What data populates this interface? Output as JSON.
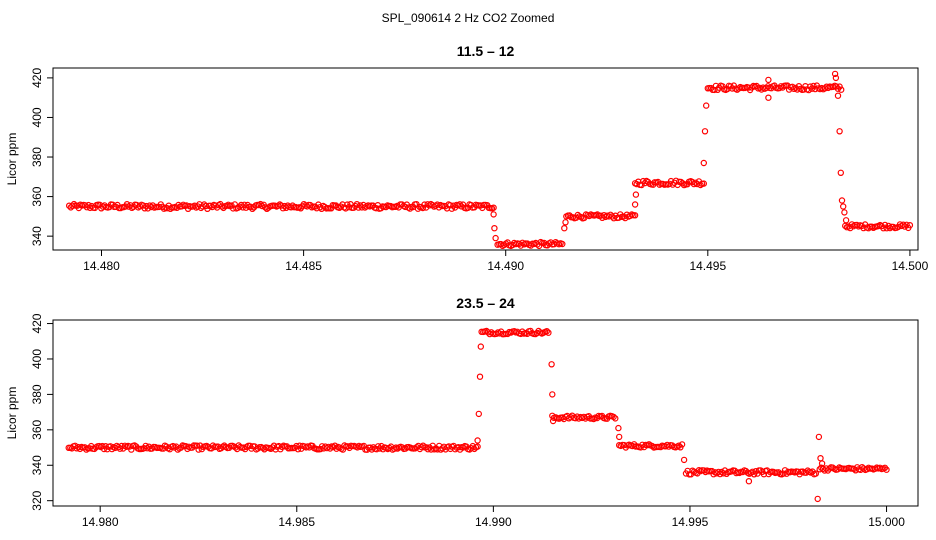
{
  "figure_title": "SPL_090614  2 Hz CO2 Zoomed",
  "chart_data": [
    {
      "type": "scatter",
      "title": "11.5 – 12",
      "xlabel": "",
      "ylabel": "Licor ppm",
      "xlim": [
        14.4788,
        14.5002
      ],
      "ylim": [
        333,
        425
      ],
      "xticks": [
        14.48,
        14.485,
        14.49,
        14.495,
        14.5
      ],
      "xtick_labels": [
        "14.480",
        "14.485",
        "14.490",
        "14.495",
        "14.500"
      ],
      "yticks": [
        340,
        360,
        380,
        400,
        420
      ],
      "ytick_labels": [
        "340",
        "360",
        "380",
        "400",
        "420"
      ],
      "marker_color": "#ff0000",
      "marker": "open-circle",
      "grid": false,
      "segments": [
        {
          "x_start": 14.4792,
          "x_end": 14.4897,
          "y": 355,
          "noise": 1.2
        },
        {
          "x_start": 14.4898,
          "x_end": 14.4914,
          "y": 336,
          "noise": 1.0
        },
        {
          "x_start": 14.4915,
          "x_end": 14.4932,
          "y": 350,
          "noise": 1.0
        },
        {
          "x_start": 14.4932,
          "x_end": 14.4949,
          "y": 367,
          "noise": 1.2
        },
        {
          "x_start": 14.495,
          "x_end": 14.4983,
          "y": 415,
          "noise": 1.2
        },
        {
          "x_start": 14.4984,
          "x_end": 14.5,
          "y": 345,
          "noise": 1.0
        }
      ],
      "transition_points": [
        {
          "x": 14.4897,
          "y": 351
        },
        {
          "x": 14.48972,
          "y": 344
        },
        {
          "x": 14.48975,
          "y": 339
        },
        {
          "x": 14.49145,
          "y": 344
        },
        {
          "x": 14.49148,
          "y": 347
        },
        {
          "x": 14.4932,
          "y": 356
        },
        {
          "x": 14.49322,
          "y": 361
        },
        {
          "x": 14.4949,
          "y": 377
        },
        {
          "x": 14.49493,
          "y": 393
        },
        {
          "x": 14.49496,
          "y": 406
        },
        {
          "x": 14.4965,
          "y": 410
        },
        {
          "x": 14.4965,
          "y": 419
        },
        {
          "x": 14.49815,
          "y": 422
        },
        {
          "x": 14.49817,
          "y": 420
        },
        {
          "x": 14.49822,
          "y": 411
        },
        {
          "x": 14.49826,
          "y": 393
        },
        {
          "x": 14.49829,
          "y": 372
        },
        {
          "x": 14.49832,
          "y": 358
        },
        {
          "x": 14.49835,
          "y": 355
        },
        {
          "x": 14.49838,
          "y": 352
        },
        {
          "x": 14.49842,
          "y": 348
        }
      ]
    },
    {
      "type": "scatter",
      "title": "23.5 – 24",
      "xlabel": "",
      "ylabel": "Licor ppm",
      "xlim": [
        14.9788,
        15.0008
      ],
      "ylim": [
        317,
        422
      ],
      "xticks": [
        14.98,
        14.985,
        14.99,
        14.995,
        15.0
      ],
      "xtick_labels": [
        "14.980",
        "14.985",
        "14.990",
        "14.995",
        "15.000"
      ],
      "yticks": [
        320,
        340,
        360,
        380,
        400,
        420
      ],
      "ytick_labels": [
        "320",
        "340",
        "360",
        "380",
        "400",
        "420"
      ],
      "marker_color": "#ff0000",
      "marker": "open-circle",
      "grid": false,
      "segments": [
        {
          "x_start": 14.9792,
          "x_end": 14.9896,
          "y": 350,
          "noise": 1.2
        },
        {
          "x_start": 14.9897,
          "x_end": 14.9914,
          "y": 415,
          "noise": 1.0
        },
        {
          "x_start": 14.9915,
          "x_end": 14.9931,
          "y": 367,
          "noise": 1.0
        },
        {
          "x_start": 14.9932,
          "x_end": 14.9948,
          "y": 351,
          "noise": 1.0
        },
        {
          "x_start": 14.9949,
          "x_end": 14.9982,
          "y": 336,
          "noise": 1.2
        },
        {
          "x_start": 14.9983,
          "x_end": 15.0,
          "y": 338,
          "noise": 1.0
        }
      ],
      "transition_points": [
        {
          "x": 14.9896,
          "y": 354
        },
        {
          "x": 14.98963,
          "y": 369
        },
        {
          "x": 14.98966,
          "y": 390
        },
        {
          "x": 14.98968,
          "y": 407
        },
        {
          "x": 14.99148,
          "y": 397
        },
        {
          "x": 14.9915,
          "y": 380
        },
        {
          "x": 14.99152,
          "y": 365
        },
        {
          "x": 14.99318,
          "y": 361
        },
        {
          "x": 14.9932,
          "y": 356
        },
        {
          "x": 14.99485,
          "y": 343
        },
        {
          "x": 14.9965,
          "y": 331
        },
        {
          "x": 14.99825,
          "y": 321
        },
        {
          "x": 14.99828,
          "y": 356
        },
        {
          "x": 14.99832,
          "y": 344
        },
        {
          "x": 14.99836,
          "y": 341
        }
      ]
    }
  ]
}
